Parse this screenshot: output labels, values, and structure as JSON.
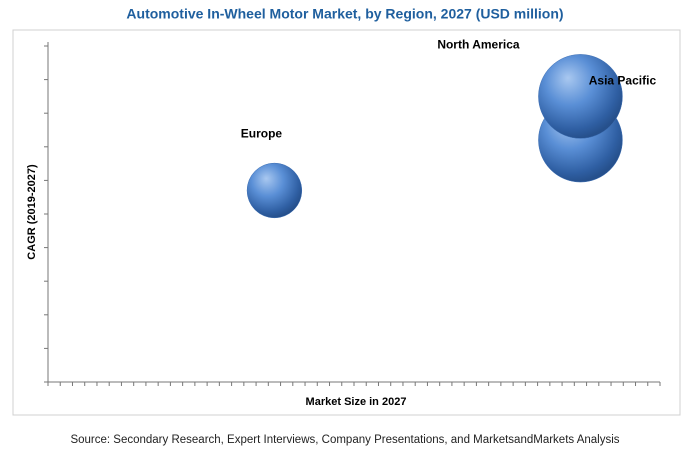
{
  "chart_data": {
    "type": "bubble",
    "title": "Automotive In-Wheel Motor Market, by Region, 2027 (USD million)",
    "x_label": "Market Size in 2027",
    "y_label": "CAGR (2019-2027)",
    "source": "Source: Secondary Research, Expert Interviews, Company Presentations, and MarketsandMarkets Analysis",
    "categories": [
      "Europe",
      "North America",
      "Asia Pacific"
    ],
    "x": [
      37,
      87,
      87
    ],
    "values": [
      57,
      72,
      85
    ],
    "color": "#3d6fb4",
    "xlim": [
      0,
      100
    ],
    "ylim": [
      0,
      100
    ],
    "xticks": [
      0,
      2,
      4,
      6,
      8,
      10,
      12,
      14,
      16,
      18,
      20,
      22,
      24,
      26,
      28,
      30,
      32,
      34,
      36,
      38,
      40,
      42,
      44,
      46,
      48,
      50,
      52,
      54,
      56,
      58,
      60,
      62,
      64,
      66,
      68,
      70,
      72,
      74,
      76,
      78,
      80,
      82,
      84,
      86,
      88,
      90,
      92,
      94,
      96,
      98,
      100
    ],
    "yticks": [
      0,
      10,
      20,
      30,
      40,
      50,
      60,
      70,
      80,
      90,
      100
    ]
  }
}
